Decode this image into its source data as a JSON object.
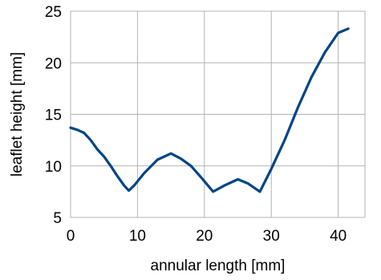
{
  "chart_data": {
    "type": "line",
    "title": "",
    "xlabel": "annular length [mm]",
    "ylabel": "leaflet height [mm]",
    "xlim": [
      0,
      44
    ],
    "ylim": [
      5,
      25
    ],
    "xticks": [
      0,
      10,
      20,
      30,
      40
    ],
    "yticks": [
      5,
      10,
      15,
      20,
      25
    ],
    "grid": true,
    "legend": "none",
    "series": [
      {
        "color": "#004586",
        "x": [
          0,
          1,
          2,
          3,
          4,
          5,
          6,
          7,
          8,
          8.7,
          9.5,
          11,
          13,
          15,
          16.5,
          18,
          19.5,
          21.3,
          23,
          25,
          26.5,
          28.3,
          30,
          32,
          34,
          36,
          38,
          40,
          41.5
        ],
        "y": [
          13.7,
          13.5,
          13.2,
          12.5,
          11.6,
          10.9,
          10.0,
          9.0,
          8.1,
          7.6,
          8.1,
          9.3,
          10.6,
          11.2,
          10.7,
          10.0,
          8.9,
          7.5,
          8.1,
          8.7,
          8.3,
          7.5,
          9.7,
          12.5,
          15.7,
          18.6,
          21.0,
          22.9,
          23.3
        ]
      }
    ]
  }
}
